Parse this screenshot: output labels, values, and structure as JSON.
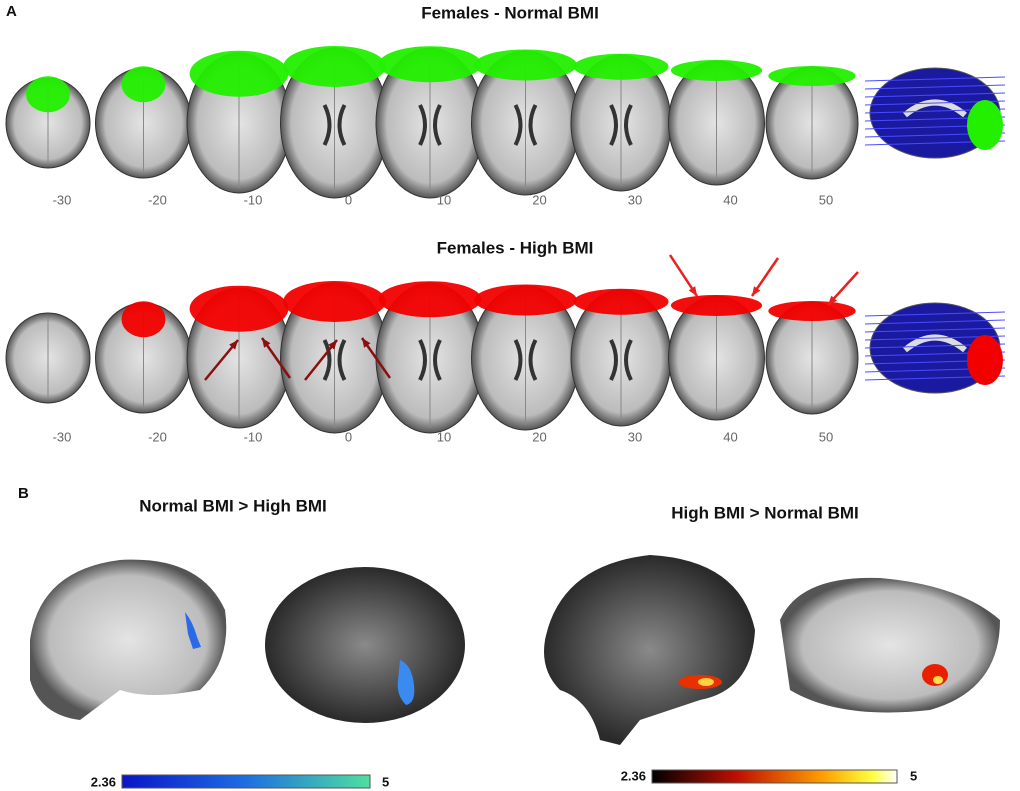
{
  "panel_a": {
    "label": "A",
    "rows": [
      {
        "title": "Females - Normal BMI",
        "slices": [
          -30,
          -20,
          -10,
          0,
          10,
          20,
          30,
          40,
          50
        ]
      },
      {
        "title": "Females - High BMI",
        "slices": [
          -30,
          -20,
          -10,
          0,
          10,
          20,
          30,
          40,
          50
        ]
      }
    ]
  },
  "panel_b": {
    "label": "B",
    "contrasts": [
      {
        "title": "Normal BMI > High BMI",
        "colorbar": {
          "min": 2.36,
          "max": 5
        }
      },
      {
        "title": "High BMI > Normal BMI",
        "colorbar": {
          "min": 2.36,
          "max": 5
        }
      }
    ]
  }
}
